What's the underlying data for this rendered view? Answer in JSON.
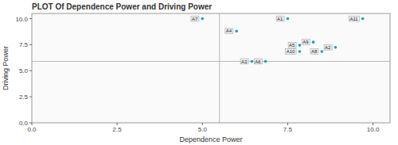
{
  "chart_data": {
    "type": "scatter",
    "title": "PLOT Of Dependence Power and Driving Power",
    "xlabel": "Dependence Power",
    "ylabel": "Driving Power",
    "x": [
      5.0,
      6.0,
      7.5,
      9.7,
      8.25,
      7.85,
      8.9,
      7.85,
      8.5,
      6.45,
      6.85
    ],
    "values": [
      10.0,
      8.8,
      10.0,
      10.0,
      7.75,
      7.45,
      7.25,
      6.85,
      6.85,
      5.9,
      5.9
    ],
    "labels": [
      "A7",
      "A4",
      "A1",
      "A11",
      "A9",
      "A5",
      "A2",
      "A10",
      "A8",
      "A3",
      "A6"
    ],
    "color": "#1a9fba",
    "hline": 5.9,
    "vline": 5.5,
    "xlim": [
      0.0,
      10.5
    ],
    "ylim": [
      0.0,
      10.5
    ],
    "xticks": [
      {
        "value": 0,
        "label": "0.0"
      },
      2.5,
      {
        "value": 5,
        "label": "5.0"
      },
      7.5,
      {
        "value": 10,
        "label": "10.0"
      }
    ],
    "yticks": [
      {
        "value": 0,
        "label": "0.0"
      },
      2.5,
      {
        "value": 5,
        "label": "5.0"
      },
      7.5,
      {
        "value": 10,
        "label": "10.0"
      }
    ],
    "grid": false
  }
}
